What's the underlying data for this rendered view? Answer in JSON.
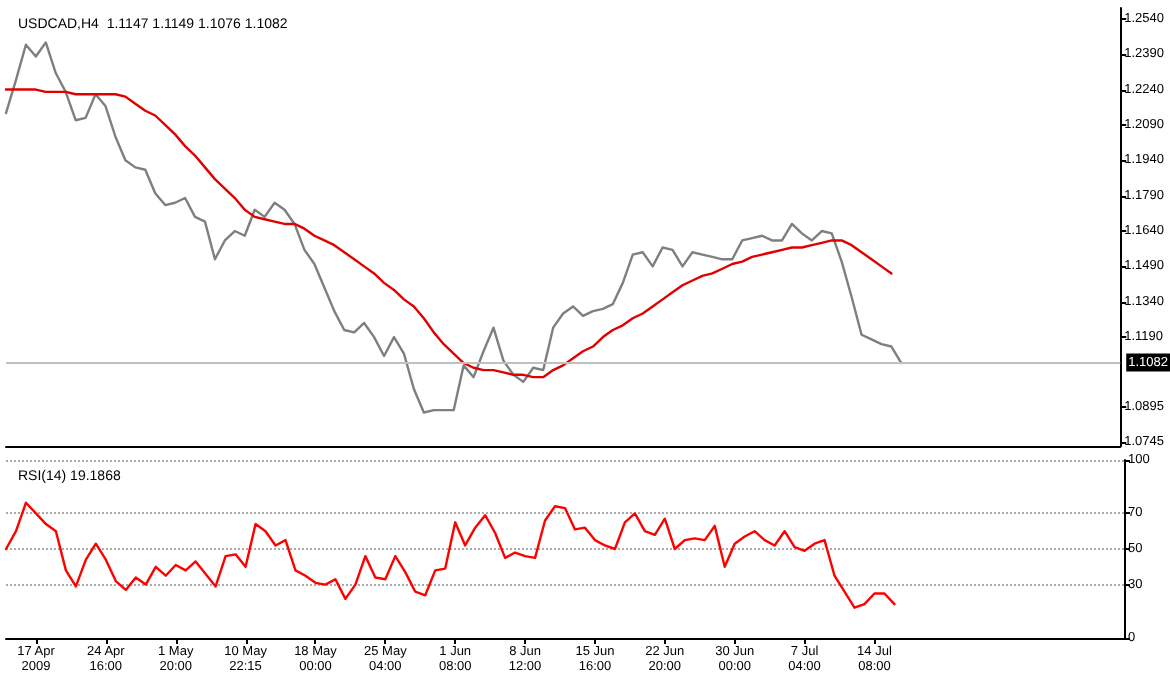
{
  "chart_data": [
    {
      "type": "line",
      "title": "USDCAD,H4  1.1147 1.1149 1.1076 1.1082",
      "ylim": [
        1.0728,
        1.2586
      ],
      "marker": "none",
      "line_style": "solid",
      "grid": false,
      "categories": [
        null,
        null,
        null,
        null,
        null,
        null,
        null,
        null,
        null,
        null,
        null,
        null,
        null,
        null,
        null,
        null,
        null,
        null,
        null,
        null,
        null,
        null,
        null,
        null,
        null,
        null,
        null,
        null,
        null,
        null,
        null,
        null,
        null,
        null,
        null,
        null,
        null,
        null,
        null,
        null,
        null,
        null,
        null,
        null,
        null,
        null,
        null,
        null,
        null,
        null,
        null,
        null,
        null,
        null,
        null,
        null,
        null,
        null,
        null,
        null,
        null,
        null,
        null,
        null,
        null,
        null,
        null,
        null,
        null,
        null,
        null,
        null,
        null,
        null,
        null,
        null,
        null,
        null,
        null,
        null,
        null,
        null,
        null,
        null,
        null,
        null,
        null,
        null,
        null,
        null,
        null,
        null,
        null,
        null,
        null,
        null,
        null,
        null,
        null,
        null,
        null,
        null,
        null,
        null,
        null,
        null,
        null,
        null,
        null,
        null,
        null,
        null,
        null
      ],
      "yticks": [
        {
          "value": 1.0745,
          "label": "1.0745"
        },
        {
          "value": 1.0895,
          "label": "1.0895"
        },
        {
          "value": 1.119,
          "label": "1.1190"
        },
        {
          "value": 1.134,
          "label": "1.1340"
        },
        {
          "value": 1.149,
          "label": "1.1490"
        },
        {
          "value": 1.164,
          "label": "1.1640"
        },
        {
          "value": 1.179,
          "label": "1.1790"
        },
        {
          "value": 1.194,
          "label": "1.1940"
        },
        {
          "value": 1.209,
          "label": "1.2090"
        },
        {
          "value": 1.224,
          "label": "1.2240"
        },
        {
          "value": 1.239,
          "label": "1.2390"
        },
        {
          "value": 1.254,
          "label": "1.2540"
        }
      ],
      "ref_lines": [
        {
          "axis": "y",
          "value": 1.1082,
          "label": "1.1082",
          "color": "#c0c0c0"
        }
      ],
      "series": [
        {
          "color": "#7f7f7f",
          "values": [
            1.214,
            1.228,
            1.243,
            1.238,
            1.244,
            1.231,
            1.223,
            1.211,
            1.212,
            1.222,
            1.217,
            1.204,
            1.194,
            1.191,
            1.19,
            1.18,
            1.175,
            1.176,
            1.178,
            1.17,
            1.168,
            1.152,
            1.16,
            1.164,
            1.162,
            1.173,
            1.17,
            1.176,
            1.173,
            1.167,
            1.156,
            1.15,
            1.14,
            1.13,
            1.122,
            1.121,
            1.125,
            1.119,
            1.111,
            1.119,
            1.112,
            1.097,
            1.087,
            1.088,
            1.088,
            1.088,
            1.107,
            1.102,
            1.113,
            1.123,
            1.109,
            1.103,
            1.1,
            1.106,
            1.105,
            1.123,
            1.129,
            1.132,
            1.128,
            1.13,
            1.131,
            1.133,
            1.142,
            1.154,
            1.155,
            1.149,
            1.157,
            1.156,
            1.149,
            1.155,
            1.154,
            1.153,
            1.152,
            1.152,
            1.16,
            1.161,
            1.162,
            1.16,
            1.16,
            1.167,
            1.163,
            1.16,
            1.164,
            1.163,
            1.151,
            1.136,
            1.12,
            1.118,
            1.116,
            1.115,
            1.108,
            null,
            null,
            null,
            null,
            null,
            null,
            null,
            null,
            null,
            null,
            null,
            null,
            null,
            null,
            null,
            null,
            null,
            null,
            null,
            null,
            null,
            null
          ]
        },
        {
          "color": "#e00000",
          "values": [
            1.224,
            1.224,
            1.224,
            1.224,
            1.223,
            1.223,
            1.223,
            1.222,
            1.222,
            1.222,
            1.222,
            1.222,
            1.221,
            1.218,
            1.215,
            1.213,
            1.209,
            1.205,
            1.2,
            1.196,
            1.191,
            1.186,
            1.182,
            1.178,
            1.173,
            1.17,
            1.169,
            1.168,
            1.167,
            1.167,
            1.165,
            1.162,
            1.16,
            1.158,
            1.155,
            1.152,
            1.149,
            1.146,
            1.142,
            1.139,
            1.135,
            1.132,
            1.127,
            1.121,
            1.116,
            1.112,
            1.108,
            1.106,
            1.105,
            1.105,
            1.104,
            1.103,
            1.103,
            1.102,
            1.102,
            1.105,
            1.107,
            1.11,
            1.113,
            1.115,
            1.119,
            1.122,
            1.124,
            1.127,
            1.129,
            1.132,
            1.135,
            1.138,
            1.141,
            1.143,
            1.145,
            1.146,
            1.148,
            1.15,
            1.151,
            1.153,
            1.154,
            1.155,
            1.156,
            1.157,
            1.157,
            1.158,
            1.159,
            1.16,
            1.16,
            1.158,
            1.155,
            1.152,
            1.149,
            1.146,
            null,
            null,
            null,
            null,
            null,
            null,
            null,
            null,
            null,
            null,
            null,
            null,
            null,
            null,
            null,
            null,
            null,
            null,
            null,
            null,
            null,
            null,
            null
          ]
        }
      ]
    },
    {
      "type": "line",
      "title": "RSI(14) 19.1868",
      "ylim": [
        0,
        100
      ],
      "yticks": [
        0,
        30,
        50,
        70,
        100
      ],
      "grid": "y",
      "marker": "none",
      "line_style": "solid",
      "categories": [
        null,
        null,
        null,
        "17 Apr 2009",
        null,
        null,
        null,
        null,
        null,
        null,
        "24 Apr 16:00",
        null,
        null,
        null,
        null,
        null,
        null,
        "1 May 20:00",
        null,
        null,
        null,
        null,
        null,
        null,
        "10 May 22:15",
        null,
        null,
        null,
        null,
        null,
        null,
        "18 May 00:00",
        null,
        null,
        null,
        null,
        null,
        null,
        "25 May 04:00",
        null,
        null,
        null,
        null,
        null,
        null,
        "1 Jun 08:00",
        null,
        null,
        null,
        null,
        null,
        null,
        "8 Jun 12:00",
        null,
        null,
        null,
        null,
        null,
        null,
        "15 Jun 16:00",
        null,
        null,
        null,
        null,
        null,
        null,
        "22 Jun 20:00",
        null,
        null,
        null,
        null,
        null,
        null,
        "30 Jun 00:00",
        null,
        null,
        null,
        null,
        null,
        null,
        "7 Jul 04:00",
        null,
        null,
        null,
        null,
        null,
        null,
        "14 Jul 08:00",
        null,
        null,
        null,
        null,
        null,
        null,
        null,
        null,
        null,
        null,
        null,
        null,
        null,
        null,
        null,
        null,
        null,
        null,
        null,
        null,
        null,
        null,
        null,
        null,
        null
      ],
      "series": [
        {
          "color": "#ff0000",
          "values": [
            50,
            60,
            76,
            70,
            64,
            60,
            38,
            29,
            44,
            53,
            44,
            32,
            27,
            34,
            30,
            40,
            35,
            41,
            38,
            43,
            36,
            29,
            46,
            47,
            40,
            64,
            60,
            52,
            55,
            38,
            35,
            31,
            30,
            33,
            22,
            30,
            46,
            34,
            33,
            46,
            37,
            26,
            24,
            38,
            39,
            65,
            52,
            62,
            69,
            59,
            45,
            48,
            46,
            45,
            66,
            74,
            73,
            61,
            62,
            55,
            52,
            50,
            65,
            70,
            60,
            58,
            67,
            50,
            55,
            56,
            55,
            63,
            40,
            53,
            57,
            60,
            55,
            52,
            60,
            51,
            49,
            53,
            55,
            35,
            26,
            17,
            19,
            25,
            25,
            19,
            null,
            null,
            null,
            null,
            null,
            null,
            null,
            null,
            null,
            null,
            null,
            null,
            null,
            null,
            null,
            null,
            null,
            null,
            null,
            null,
            null,
            null,
            null
          ]
        }
      ]
    }
  ]
}
